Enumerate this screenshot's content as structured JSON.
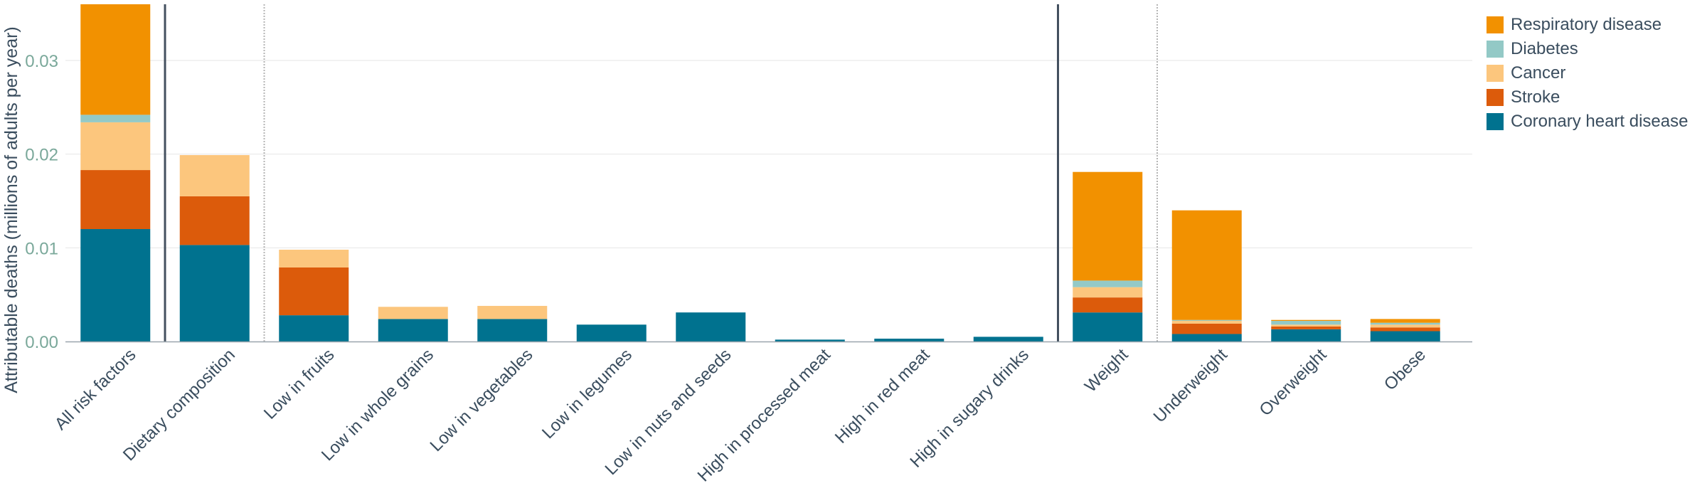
{
  "chart_data": {
    "type": "bar",
    "stacked": true,
    "ylabel": "Attributable deaths (millions of adults per year)",
    "xlabel": "",
    "ylim": [
      0,
      0.036
    ],
    "yticks": [
      0.0,
      0.01,
      0.02,
      0.03
    ],
    "ytick_labels": [
      "0.00",
      "0.01",
      "0.02",
      "0.03"
    ],
    "grid": true,
    "legend_position": "top-right",
    "categories": [
      "All risk factors",
      "Dietary composition",
      "Low in fruits",
      "Low in whole grains",
      "Low in vegetables",
      "Low in legumes",
      "Low in nuts and seeds",
      "High in processed meat",
      "High in red meat",
      "High in sugary drinks",
      "Weight",
      "Underweight",
      "Overweight",
      "Obese"
    ],
    "group_separators_solid_after": [
      0,
      9
    ],
    "group_separators_dotted_after": [
      1,
      10
    ],
    "series": [
      {
        "name": "Coronary heart disease",
        "color": "#00728f",
        "values": [
          0.012,
          0.0103,
          0.0028,
          0.0024,
          0.0024,
          0.0018,
          0.0031,
          0.0002,
          0.0003,
          0.0005,
          0.0031,
          0.0008,
          0.0013,
          0.0011
        ]
      },
      {
        "name": "Stroke",
        "color": "#dc5b0b",
        "values": [
          0.0063,
          0.0052,
          0.0051,
          0.0,
          0.0,
          0.0,
          0.0,
          0.0,
          0.0,
          0.0,
          0.0016,
          0.0011,
          0.0003,
          0.0004
        ]
      },
      {
        "name": "Cancer",
        "color": "#fcc67d",
        "values": [
          0.0051,
          0.0044,
          0.0019,
          0.0013,
          0.0014,
          0.0,
          0.0,
          0.0,
          0.0,
          0.0,
          0.0011,
          0.0003,
          0.0002,
          0.0003
        ]
      },
      {
        "name": "Diabetes",
        "color": "#93c9c6",
        "values": [
          0.0008,
          0.0,
          0.0,
          0.0,
          0.0,
          0.0,
          0.0,
          0.0,
          0.0,
          0.0,
          0.0007,
          0.0001,
          0.0004,
          0.0002
        ]
      },
      {
        "name": "Respiratory disease",
        "color": "#f29100",
        "values": [
          0.0118,
          0.0,
          0.0,
          0.0,
          0.0,
          0.0,
          0.0,
          0.0,
          0.0,
          0.0,
          0.0116,
          0.0117,
          0.0001,
          0.0004
        ]
      }
    ],
    "legend_order": [
      "Respiratory disease",
      "Diabetes",
      "Cancer",
      "Stroke",
      "Coronary heart disease"
    ]
  }
}
